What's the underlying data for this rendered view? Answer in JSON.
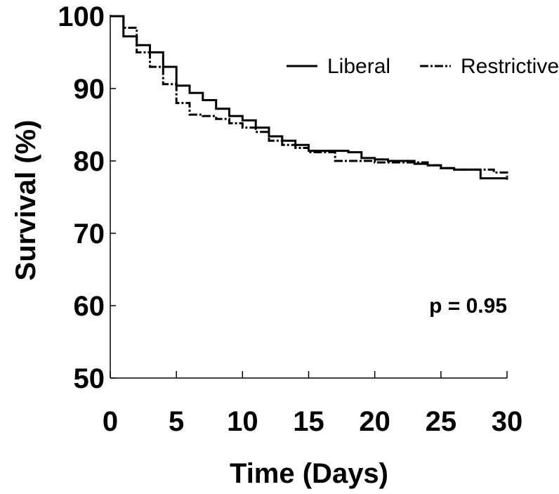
{
  "chart_data": {
    "type": "line",
    "title": "",
    "xlabel": "Time (Days)",
    "ylabel": "Survival (%)",
    "xlim": [
      0,
      30
    ],
    "ylim": [
      50,
      100
    ],
    "xticks": [
      0,
      5,
      10,
      15,
      20,
      25,
      30
    ],
    "yticks": [
      50,
      60,
      70,
      80,
      90,
      100
    ],
    "grid": false,
    "legend_position": "top-right",
    "annotation": "p = 0.95",
    "series": [
      {
        "name": "Liberal",
        "style": "solid",
        "color": "#000000",
        "x": [
          0,
          1,
          2,
          3,
          4,
          5,
          6,
          7,
          8,
          9,
          10,
          11,
          12,
          13,
          14,
          15,
          16,
          17,
          18,
          19,
          20,
          21,
          22,
          23,
          24,
          25,
          26,
          27,
          28,
          29,
          30
        ],
        "y": [
          100,
          97.2,
          96.0,
          95.0,
          93.0,
          90.4,
          89.4,
          88.4,
          87.2,
          86.2,
          85.6,
          84.6,
          83.4,
          82.8,
          82.2,
          81.4,
          81.4,
          81.4,
          81.2,
          80.4,
          80.2,
          80.0,
          80.0,
          79.6,
          79.4,
          79.0,
          78.8,
          78.8,
          77.6,
          77.6,
          77.4
        ]
      },
      {
        "name": "Restrictive",
        "style": "dash-dot",
        "color": "#000000",
        "x": [
          0,
          1,
          2,
          3,
          4,
          5,
          6,
          7,
          8,
          9,
          10,
          11,
          12,
          13,
          14,
          15,
          16,
          17,
          18,
          19,
          20,
          21,
          22,
          23,
          24,
          25,
          26,
          27,
          28,
          29,
          30
        ],
        "y": [
          100,
          98.4,
          95.0,
          93.0,
          90.6,
          88.0,
          86.4,
          86.2,
          85.8,
          85.2,
          84.6,
          84.0,
          82.8,
          82.2,
          81.8,
          81.2,
          81.2,
          80.0,
          80.0,
          80.0,
          79.8,
          79.8,
          79.8,
          79.8,
          79.4,
          79.0,
          78.8,
          78.8,
          78.8,
          78.4,
          77.8
        ]
      }
    ]
  }
}
